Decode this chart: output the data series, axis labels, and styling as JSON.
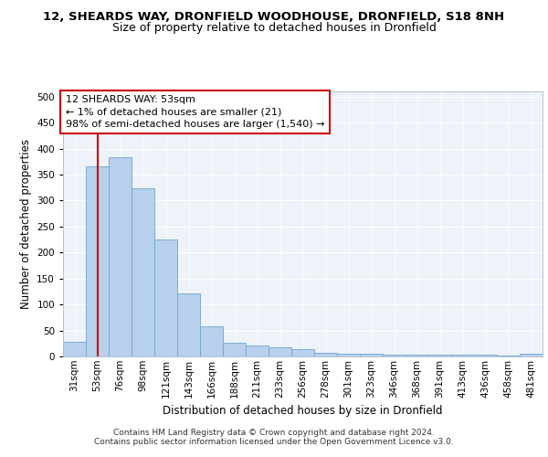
{
  "title_line1": "12, SHEARDS WAY, DRONFIELD WOODHOUSE, DRONFIELD, S18 8NH",
  "title_line2": "Size of property relative to detached houses in Dronfield",
  "xlabel": "Distribution of detached houses by size in Dronfield",
  "ylabel": "Number of detached properties",
  "categories": [
    "31sqm",
    "53sqm",
    "76sqm",
    "98sqm",
    "121sqm",
    "143sqm",
    "166sqm",
    "188sqm",
    "211sqm",
    "233sqm",
    "256sqm",
    "278sqm",
    "301sqm",
    "323sqm",
    "346sqm",
    "368sqm",
    "391sqm",
    "413sqm",
    "436sqm",
    "458sqm",
    "481sqm"
  ],
  "bar_values": [
    28,
    365,
    383,
    323,
    225,
    121,
    58,
    27,
    21,
    18,
    14,
    7,
    6,
    5,
    4,
    4,
    4,
    4,
    4,
    2,
    5
  ],
  "bar_color": "#b8d0eb",
  "bar_edge_color": "#6ea6d0",
  "highlight_bar_index": 1,
  "highlight_color": "#cc0000",
  "annotation_text_line1": "12 SHEARDS WAY: 53sqm",
  "annotation_text_line2": "← 1% of detached houses are smaller (21)",
  "annotation_text_line3": "98% of semi-detached houses are larger (1,540) →",
  "ylim": [
    0,
    510
  ],
  "yticks": [
    0,
    50,
    100,
    150,
    200,
    250,
    300,
    350,
    400,
    450,
    500
  ],
  "footer_line1": "Contains HM Land Registry data © Crown copyright and database right 2024.",
  "footer_line2": "Contains public sector information licensed under the Open Government Licence v3.0.",
  "background_color": "#eef2f9",
  "grid_color": "#ffffff",
  "title1_fontsize": 9.5,
  "title2_fontsize": 9,
  "axis_label_fontsize": 8.5,
  "tick_fontsize": 7.5,
  "annotation_fontsize": 8,
  "footer_fontsize": 6.5
}
